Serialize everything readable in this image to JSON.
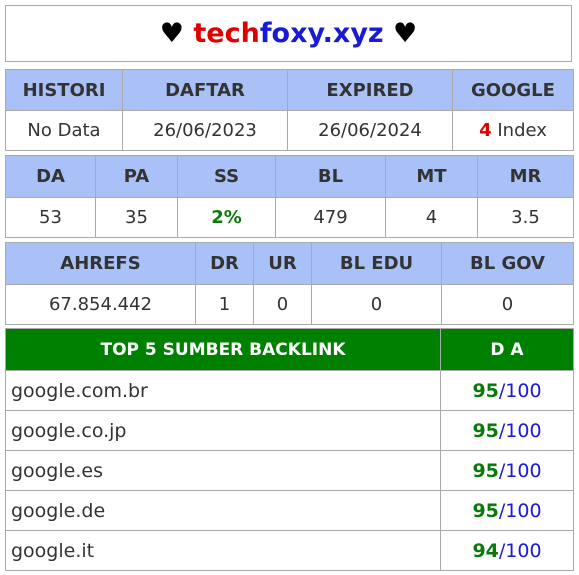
{
  "title": {
    "heart_left": "♥",
    "part1": "tech",
    "part2": "foxy.xyz",
    "heart_right": "♥"
  },
  "table1": {
    "headers": [
      "HISTORI",
      "DAFTAR",
      "EXPIRED",
      "GOOGLE"
    ],
    "histori": "No Data",
    "daftar": "26/06/2023",
    "expired": "26/06/2024",
    "google_count": "4",
    "google_label": " Index"
  },
  "table2": {
    "headers": [
      "DA",
      "PA",
      "SS",
      "BL",
      "MT",
      "MR"
    ],
    "da": "53",
    "pa": "35",
    "ss": "2%",
    "bl": "479",
    "mt": "4",
    "mr": "3.5"
  },
  "table3": {
    "headers": [
      "AHREFS",
      "DR",
      "UR",
      "BL EDU",
      "BL GOV"
    ],
    "ahrefs": "67.854.442",
    "dr": "1",
    "ur": "0",
    "bl_edu": "0",
    "bl_gov": "0"
  },
  "backlinks": {
    "header_source": "TOP 5 SUMBER BACKLINK",
    "header_da": "D A",
    "separator": "/",
    "max": "100",
    "rows": [
      {
        "source": "google.com.br",
        "da": "95"
      },
      {
        "source": "google.co.jp",
        "da": "95"
      },
      {
        "source": "google.es",
        "da": "95"
      },
      {
        "source": "google.de",
        "da": "95"
      },
      {
        "source": "google.it",
        "da": "94"
      }
    ]
  },
  "colors": {
    "header_blue": "#a9c1f7",
    "header_green": "#008000",
    "accent_red": "#e00000",
    "accent_blue": "#1a1ad6",
    "accent_green": "#0a7a0a"
  }
}
